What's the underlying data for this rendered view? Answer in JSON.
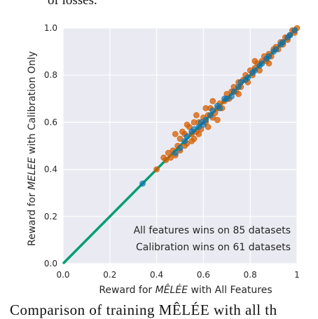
{
  "page": {
    "top_text": "of losses.",
    "bottom_text": "Comparison of training MÊLÉE with all th"
  },
  "chart_data": {
    "type": "scatter",
    "xlabel_prefix": "Reward for ",
    "xlabel_emph": "MÊLÉE",
    "xlabel_suffix": " with All Features",
    "ylabel_prefix": "Reward for ",
    "ylabel_emph": "MELEE",
    "ylabel_suffix": " with Calibration Only",
    "xlim": [
      0,
      1
    ],
    "ylim": [
      0,
      1
    ],
    "x_ticks": [
      "0.0",
      "0.2",
      "0.4",
      "0.6",
      "0.8",
      "1"
    ],
    "y_ticks": [
      "0.0",
      "0.2",
      "0.4",
      "0.6",
      "0.8",
      "1.0"
    ],
    "grid": true,
    "annotations": [
      "All features wins on 85 datasets",
      "Calibration wins on 61 datasets"
    ],
    "colors": {
      "background": "#eaeaf2",
      "grid": "#ffffff",
      "diagonal": "#009e73",
      "calibration_points": "#d55e00",
      "all_features_points": "#0072b2"
    },
    "diagonal": [
      [
        0,
        0
      ],
      [
        1,
        1
      ]
    ],
    "series": [
      {
        "color_key": "calibration_points",
        "points": [
          [
            0.4,
            0.4
          ],
          [
            0.43,
            0.45
          ],
          [
            0.44,
            0.44
          ],
          [
            0.45,
            0.47
          ],
          [
            0.46,
            0.45
          ],
          [
            0.47,
            0.48
          ],
          [
            0.48,
            0.46
          ],
          [
            0.48,
            0.55
          ],
          [
            0.49,
            0.5
          ],
          [
            0.5,
            0.48
          ],
          [
            0.5,
            0.53
          ],
          [
            0.51,
            0.56
          ],
          [
            0.52,
            0.5
          ],
          [
            0.52,
            0.55
          ],
          [
            0.53,
            0.51
          ],
          [
            0.54,
            0.58
          ],
          [
            0.55,
            0.52
          ],
          [
            0.55,
            0.55
          ],
          [
            0.56,
            0.6
          ],
          [
            0.56,
            0.53
          ],
          [
            0.57,
            0.56
          ],
          [
            0.58,
            0.55
          ],
          [
            0.58,
            0.6
          ],
          [
            0.59,
            0.57
          ],
          [
            0.6,
            0.62
          ],
          [
            0.61,
            0.6
          ],
          [
            0.62,
            0.58
          ],
          [
            0.62,
            0.63
          ],
          [
            0.63,
            0.66
          ],
          [
            0.64,
            0.62
          ],
          [
            0.64,
            0.69
          ],
          [
            0.65,
            0.64
          ],
          [
            0.66,
            0.66
          ],
          [
            0.67,
            0.68
          ],
          [
            0.68,
            0.66
          ],
          [
            0.69,
            0.69
          ],
          [
            0.7,
            0.72
          ],
          [
            0.71,
            0.7
          ],
          [
            0.72,
            0.73
          ],
          [
            0.73,
            0.75
          ],
          [
            0.74,
            0.73
          ],
          [
            0.75,
            0.77
          ],
          [
            0.76,
            0.75
          ],
          [
            0.77,
            0.78
          ],
          [
            0.78,
            0.8
          ],
          [
            0.79,
            0.77
          ],
          [
            0.8,
            0.82
          ],
          [
            0.81,
            0.8
          ],
          [
            0.82,
            0.83
          ],
          [
            0.83,
            0.85
          ],
          [
            0.84,
            0.82
          ],
          [
            0.85,
            0.86
          ],
          [
            0.86,
            0.88
          ],
          [
            0.87,
            0.86
          ],
          [
            0.88,
            0.89
          ],
          [
            0.89,
            0.88
          ],
          [
            0.9,
            0.91
          ],
          [
            0.91,
            0.92
          ],
          [
            0.92,
            0.91
          ],
          [
            0.93,
            0.94
          ],
          [
            0.94,
            0.93
          ],
          [
            0.95,
            0.96
          ],
          [
            0.96,
            0.95
          ],
          [
            0.97,
            0.97
          ],
          [
            0.98,
            0.99
          ],
          [
            0.99,
            0.98
          ],
          [
            1.0,
            1.0
          ],
          [
            0.57,
            0.63
          ],
          [
            0.61,
            0.66
          ],
          [
            0.66,
            0.61
          ],
          [
            0.53,
            0.59
          ],
          [
            0.75,
            0.72
          ],
          [
            0.82,
            0.86
          ],
          [
            0.88,
            0.85
          ]
        ]
      },
      {
        "color_key": "all_features_points",
        "points": [
          [
            0.34,
            0.34
          ],
          [
            0.48,
            0.47
          ],
          [
            0.5,
            0.49
          ],
          [
            0.52,
            0.52
          ],
          [
            0.53,
            0.54
          ],
          [
            0.55,
            0.56
          ],
          [
            0.56,
            0.57
          ],
          [
            0.58,
            0.58
          ],
          [
            0.59,
            0.6
          ],
          [
            0.6,
            0.59
          ],
          [
            0.61,
            0.61
          ],
          [
            0.63,
            0.63
          ],
          [
            0.64,
            0.65
          ],
          [
            0.66,
            0.67
          ],
          [
            0.67,
            0.66
          ],
          [
            0.69,
            0.7
          ],
          [
            0.7,
            0.7
          ],
          [
            0.72,
            0.71
          ],
          [
            0.73,
            0.73
          ],
          [
            0.75,
            0.75
          ],
          [
            0.76,
            0.77
          ],
          [
            0.78,
            0.78
          ],
          [
            0.79,
            0.79
          ],
          [
            0.81,
            0.81
          ],
          [
            0.82,
            0.82
          ],
          [
            0.84,
            0.84
          ],
          [
            0.85,
            0.85
          ],
          [
            0.87,
            0.87
          ],
          [
            0.88,
            0.88
          ],
          [
            0.9,
            0.9
          ],
          [
            0.91,
            0.91
          ],
          [
            0.93,
            0.93
          ],
          [
            0.94,
            0.94
          ],
          [
            0.96,
            0.96
          ],
          [
            0.97,
            0.97
          ],
          [
            0.99,
            0.99
          ]
        ]
      }
    ]
  }
}
